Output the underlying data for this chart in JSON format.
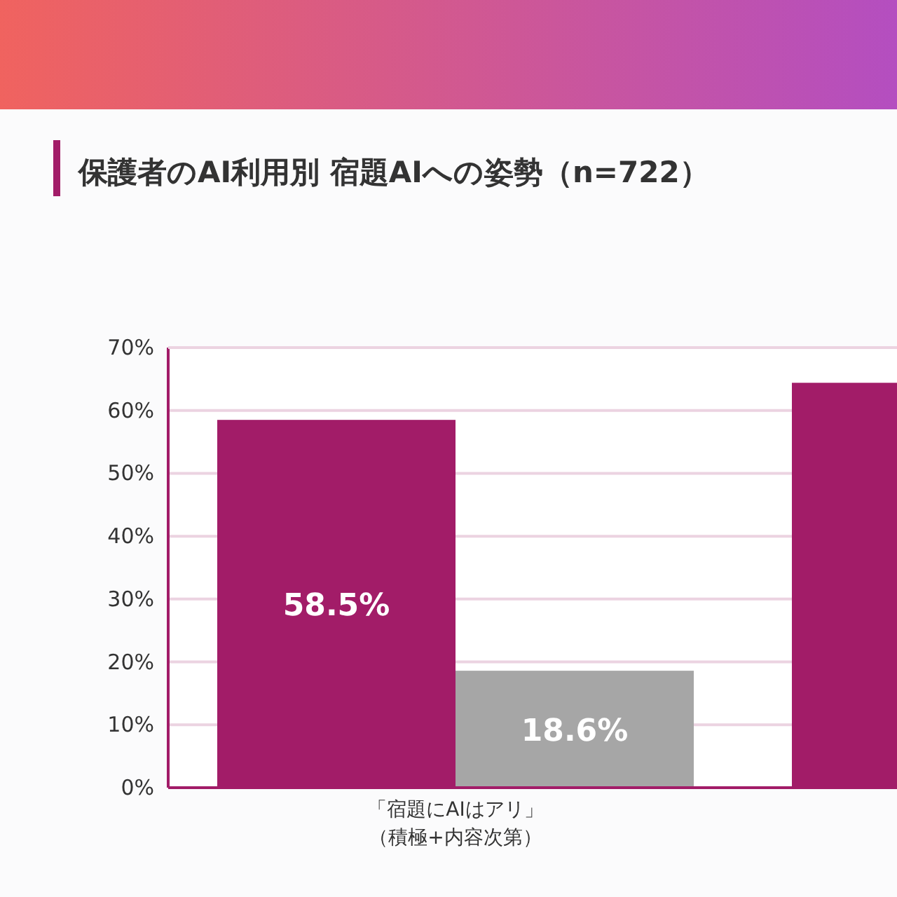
{
  "chart_data": {
    "type": "bar",
    "title": "保護者のAI利用別 宿題AIへの姿勢（n=722）",
    "categories": [
      "「宿題にAIはアリ」（積極+内容次第）",
      null
    ],
    "series": [
      {
        "color": "#a21c68",
        "values": [
          58.5,
          64.4
        ],
        "value_labels": [
          "58.5%",
          null
        ]
      },
      {
        "color": "#a6a6a6",
        "values": [
          18.6,
          null
        ],
        "value_labels": [
          "18.6%",
          null
        ]
      }
    ],
    "ylim": [
      0,
      70
    ],
    "yticks": [
      {
        "value": 0,
        "label": "0%"
      },
      {
        "value": 10,
        "label": "10%"
      },
      {
        "value": 20,
        "label": "20%"
      },
      {
        "value": 30,
        "label": "30%"
      },
      {
        "value": 40,
        "label": "40%"
      },
      {
        "value": 50,
        "label": "50%"
      },
      {
        "value": 60,
        "label": "60%"
      },
      {
        "value": 70,
        "label": "70%"
      }
    ],
    "grid": "y"
  }
}
